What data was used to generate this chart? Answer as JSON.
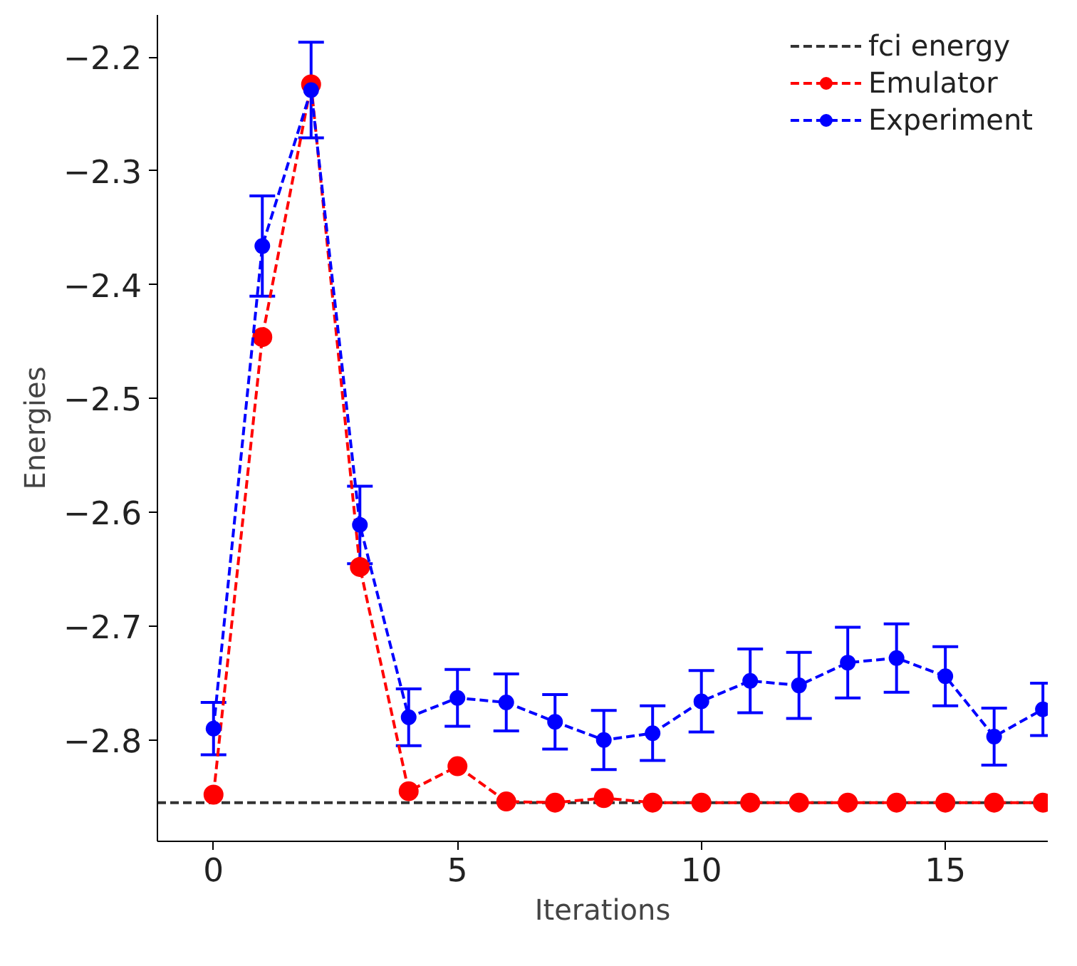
{
  "chart_data": {
    "type": "line",
    "xlabel": "Iterations",
    "ylabel": "Energies",
    "x": [
      0,
      1,
      2,
      3,
      4,
      5,
      6,
      7,
      8,
      9,
      10,
      11,
      12,
      13,
      14,
      15,
      16,
      17
    ],
    "xlim": [
      -1.15,
      17.1
    ],
    "xticks": [
      0,
      5,
      10,
      15
    ],
    "ylim": [
      -2.889,
      -2.163
    ],
    "yticks": [
      {
        "value": -2.2,
        "label": "−2.2"
      },
      {
        "value": -2.3,
        "label": "−2.3"
      },
      {
        "value": -2.4,
        "label": "−2.4"
      },
      {
        "value": -2.5,
        "label": "−2.5"
      },
      {
        "value": -2.6,
        "label": "−2.6"
      },
      {
        "value": -2.7,
        "label": "−2.7"
      },
      {
        "value": -2.8,
        "label": "−2.8"
      }
    ],
    "ref_lines": [
      {
        "axis": "y",
        "value": -2.855,
        "label": "fci energy",
        "color": "#333333",
        "line_style": "dashed"
      }
    ],
    "series": [
      {
        "name": "Emulator",
        "color": "#ff0000",
        "values": [
          -2.848,
          -2.446,
          -2.224,
          -2.648,
          -2.845,
          -2.823,
          -2.854,
          -2.855,
          -2.851,
          -2.855,
          -2.855,
          -2.855,
          -2.855,
          -2.855,
          -2.855,
          -2.855,
          -2.855,
          -2.855
        ]
      },
      {
        "name": "Experiment",
        "color": "#0000ff",
        "values": [
          -2.79,
          -2.366,
          -2.229,
          -2.611,
          -2.78,
          -2.763,
          -2.767,
          -2.784,
          -2.8,
          -2.794,
          -2.766,
          -2.748,
          -2.752,
          -2.732,
          -2.728,
          -2.744,
          -2.797,
          -2.773
        ],
        "errors": [
          0.023,
          0.044,
          0.042,
          0.034,
          0.025,
          0.025,
          0.025,
          0.024,
          0.026,
          0.024,
          0.027,
          0.028,
          0.029,
          0.031,
          0.03,
          0.026,
          0.025,
          0.023
        ]
      }
    ],
    "marker": "circle",
    "line_style": "dashed",
    "legend": "top right",
    "grid": false
  }
}
